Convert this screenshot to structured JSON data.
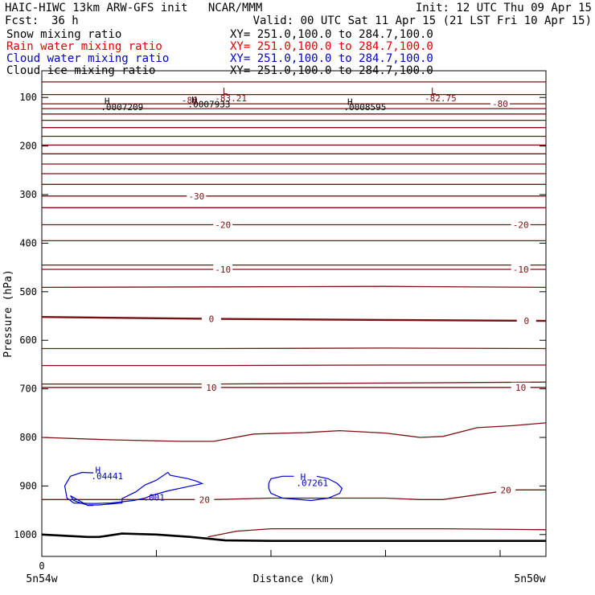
{
  "header": {
    "title": "HAIC-HIWC 13km ARW-GFS init   NCAR/MMM",
    "init": "Init: 12 UTC Thu 09 Apr 15",
    "fcst_label": "Fcst:",
    "fcst_value": "36 h",
    "valid": "Valid: 00 UTC Sat 11 Apr 15 (21 LST Fri 10 Apr 15)",
    "fields": [
      {
        "name": "Snow mixing ratio",
        "xy": "XY= 251.0,100.0 to 284.7,100.0",
        "color": "#000000"
      },
      {
        "name": "Rain water mixing ratio",
        "xy": "XY= 251.0,100.0 to 284.7,100.0",
        "color": "#e00000"
      },
      {
        "name": "Cloud water mixing ratio",
        "xy": "XY= 251.0,100.0 to 284.7,100.0",
        "color": "#0000cc"
      },
      {
        "name": "Cloud ice mixing ratio",
        "xy": "XY= 251.0,100.0 to 284.7,100.0",
        "color": "#000000"
      }
    ]
  },
  "chart_data": {
    "type": "line",
    "ylabel": "Pressure (hPa)",
    "xlabel": "Distance (km)",
    "yticks": [
      100,
      200,
      300,
      400,
      500,
      600,
      700,
      800,
      900,
      1000
    ],
    "ylim": [
      1045,
      45
    ],
    "xlim": [
      0,
      440
    ],
    "xtick_values": [
      0,
      100,
      200,
      300,
      400
    ],
    "xtick_labels": [
      {
        "x": 0,
        "text": "0"
      }
    ],
    "x_end_labels": [
      "5n54w",
      "5n50w"
    ],
    "temperature_color": "#7a1010",
    "temperature_contours": [
      {
        "p": [
          68,
          68,
          68,
          68
        ],
        "x": [
          0,
          150,
          300,
          440
        ]
      },
      {
        "p": [
          94,
          94,
          94,
          94
        ],
        "x": [
          0,
          150,
          300,
          440
        ]
      },
      {
        "p": [
          113,
          113,
          113,
          113
        ],
        "x": [
          0,
          150,
          300,
          440
        ],
        "label": "-80",
        "label_x": [
          400
        ]
      },
      {
        "p": [
          123,
          123,
          123,
          123
        ],
        "x": [
          0,
          150,
          300,
          440
        ]
      },
      {
        "p": [
          134,
          134,
          134,
          134
        ],
        "x": [
          0,
          150,
          300,
          440
        ]
      },
      {
        "p": [
          147,
          147,
          147,
          147
        ],
        "x": [
          0,
          150,
          300,
          440
        ]
      },
      {
        "p": [
          162,
          162,
          162,
          162
        ],
        "x": [
          0,
          150,
          300,
          440
        ]
      },
      {
        "p": [
          180,
          180,
          180,
          180
        ],
        "x": [
          0,
          150,
          300,
          440
        ]
      },
      {
        "p": [
          198,
          198,
          198,
          198
        ],
        "x": [
          0,
          150,
          300,
          440
        ]
      },
      {
        "p": [
          216,
          216,
          216,
          216
        ],
        "x": [
          0,
          150,
          300,
          440
        ]
      },
      {
        "p": [
          237,
          237,
          237,
          237
        ],
        "x": [
          0,
          150,
          300,
          440
        ]
      },
      {
        "p": [
          257,
          257,
          257,
          257
        ],
        "x": [
          0,
          150,
          300,
          440
        ]
      },
      {
        "p": [
          279,
          279,
          279,
          279
        ],
        "x": [
          0,
          150,
          300,
          440
        ]
      },
      {
        "p": [
          303,
          303,
          303,
          303
        ],
        "x": [
          0,
          150,
          300,
          440
        ],
        "label": "-30",
        "label_x": [
          135
        ]
      },
      {
        "p": [
          327,
          327,
          327,
          327
        ],
        "x": [
          0,
          150,
          300,
          440
        ]
      },
      {
        "p": [
          362,
          362,
          362,
          362
        ],
        "x": [
          0,
          150,
          300,
          440
        ],
        "label": "-20",
        "label_x": [
          158,
          418
        ]
      },
      {
        "p": [
          395,
          395,
          395,
          395
        ],
        "x": [
          0,
          150,
          300,
          440
        ]
      },
      {
        "p": [
          445,
          445,
          445,
          445
        ],
        "x": [
          0,
          150,
          300,
          440
        ]
      },
      {
        "p": [
          491,
          490,
          489,
          491
        ],
        "x": [
          0,
          150,
          300,
          440
        ]
      },
      {
        "p": [
          454,
          454,
          454,
          454
        ],
        "x": [
          0,
          150,
          300,
          440
        ],
        "label": "-10",
        "label_x": [
          158,
          418
        ]
      },
      {
        "p": [
          552,
          556,
          558,
          560
        ],
        "x": [
          0,
          150,
          300,
          440
        ],
        "label": "0",
        "label_x": [
          148,
          423
        ]
      },
      {
        "p": [
          617,
          617,
          616,
          617
        ],
        "x": [
          0,
          150,
          300,
          440
        ]
      },
      {
        "p": [
          652,
          652,
          651,
          651
        ],
        "x": [
          0,
          150,
          300,
          440
        ]
      },
      {
        "p": [
          690,
          690,
          688,
          686
        ],
        "x": [
          0,
          150,
          300,
          440
        ]
      },
      {
        "p": [
          697,
          697,
          697,
          697
        ],
        "x": [
          0,
          150,
          300,
          440
        ],
        "label": "10",
        "label_x": [
          148,
          418
        ]
      },
      {
        "p": [
          800,
          805,
          808,
          808,
          793,
          790,
          786,
          791,
          800,
          798,
          780,
          776,
          770
        ],
        "x": [
          0,
          60,
          120,
          150,
          185,
          230,
          260,
          300,
          330,
          350,
          380,
          410,
          440
        ]
      },
      {
        "p": [
          928,
          928,
          928,
          928,
          925,
          925,
          925,
          928,
          928,
          908,
          908
        ],
        "x": [
          0,
          60,
          110,
          150,
          200,
          250,
          300,
          330,
          350,
          410,
          440
        ],
        "label": "20",
        "label_x": [
          142,
          405
        ]
      },
      {
        "p": [
          1005,
          993,
          988,
          988,
          988,
          988,
          990
        ],
        "x": [
          145,
          170,
          200,
          250,
          300,
          350,
          440
        ]
      }
    ],
    "terrain": {
      "p": [
        1000,
        1005,
        1005,
        998,
        1000,
        1005,
        1012,
        1013,
        1013,
        1013
      ],
      "x": [
        0,
        40,
        50,
        70,
        100,
        130,
        160,
        200,
        300,
        440
      ],
      "color": "#000000"
    },
    "cloud_water_color": "#0000cc",
    "cloud_water_contours": [
      {
        "p": [
          873,
          872,
          880,
          900,
          925,
          935,
          936,
          935,
          930,
          925,
          920,
          910,
          900,
          895,
          890,
          885,
          878,
          872,
          872,
          888,
          898,
          912,
          926,
          935,
          939,
          939,
          936,
          930,
          920,
          920,
          940,
          940
        ],
        "x": [
          45,
          35,
          25,
          20,
          22,
          28,
          45,
          60,
          80,
          90,
          95,
          110,
          130,
          140,
          135,
          128,
          112,
          110,
          110,
          100,
          90,
          82,
          70,
          70,
          50,
          40,
          35,
          28,
          25,
          25,
          40,
          45
        ]
      },
      {
        "p": [
          880,
          880,
          885,
          895,
          905,
          915,
          925,
          930,
          925,
          915,
          905,
          895,
          885,
          880
        ],
        "x": [
          220,
          210,
          200,
          198,
          198,
          200,
          210,
          235,
          250,
          260,
          262,
          258,
          250,
          240
        ]
      }
    ],
    "temperature_labels": [
      {
        "text": "-83.21",
        "x": 165,
        "p": 108
      },
      {
        "text": "-82.75",
        "x": 348,
        "p": 108
      },
      {
        "text": "-80",
        "x": 129,
        "p": 112
      }
    ],
    "extrema": [
      {
        "text": "L",
        "x": 160,
        "p": 93,
        "color": "#7a1010"
      },
      {
        "text": "L",
        "x": 342,
        "p": 93,
        "color": "#7a1010"
      },
      {
        "text": "H",
        "x": 57,
        "p": 114,
        "color": "#000000"
      },
      {
        "text": ".0007209",
        "x": 70,
        "p": 126,
        "color": "#000000"
      },
      {
        "text": "H",
        "x": 133,
        "p": 111,
        "color": "#000000"
      },
      {
        "text": ".0007933",
        "x": 146,
        "p": 120,
        "color": "#000000"
      },
      {
        "text": "H",
        "x": 269,
        "p": 115,
        "color": "#000000"
      },
      {
        "text": ".0008595",
        "x": 282,
        "p": 126,
        "color": "#000000"
      },
      {
        "text": "H",
        "x": 49,
        "p": 874,
        "color": "#0000cc"
      },
      {
        "text": ".04441",
        "x": 57,
        "p": 886,
        "color": "#0000cc"
      },
      {
        "text": ".001",
        "x": 98,
        "p": 930,
        "color": "#0000cc"
      },
      {
        "text": "H",
        "x": 228,
        "p": 888,
        "color": "#0000cc"
      },
      {
        "text": ".07261",
        "x": 236,
        "p": 900,
        "color": "#0000cc"
      }
    ]
  }
}
